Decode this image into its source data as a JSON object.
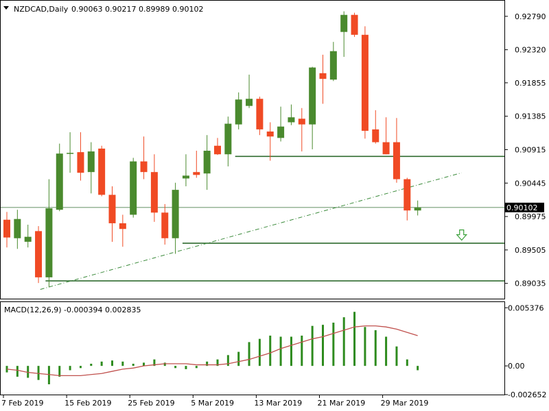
{
  "header": {
    "symbol_timeframe": "NZDCAD,Daily",
    "ohlc": "0.90063 0.90217 0.89989 0.90102"
  },
  "macd_header": "MACD(12,26,9) -0.000394 0.002835",
  "current_price_label": "0.90102",
  "colors": {
    "bull": "#4a8a2e",
    "bear": "#f04a24",
    "level_line": "#2f6b2f",
    "trend_line": "#3a8a3a",
    "macd_hist": "#2e8b1e",
    "signal_line": "#c0504d",
    "arrow": "#3aa03a"
  },
  "chart_data": [
    {
      "type": "candlestick",
      "symbol": "NZDCAD",
      "timeframe": "Daily",
      "ylim": [
        0.8882,
        0.93
      ],
      "y_ticks": [
        "0.92790",
        "0.92320",
        "0.91855",
        "0.91385",
        "0.90915",
        "0.90445",
        "0.89975",
        "0.89505",
        "0.89035"
      ],
      "x_tick_labels": [
        "7 Feb 2019",
        "15 Feb 2019",
        "25 Feb 2019",
        "5 Mar 2019",
        "13 Mar 2019",
        "21 Mar 2019",
        "29 Mar 2019"
      ],
      "candles": [
        {
          "o": 0.8993,
          "h": 0.9004,
          "l": 0.8954,
          "c": 0.8968
        },
        {
          "o": 0.8967,
          "h": 0.9007,
          "l": 0.8952,
          "c": 0.8994
        },
        {
          "o": 0.8962,
          "h": 0.8986,
          "l": 0.8954,
          "c": 0.8969
        },
        {
          "o": 0.8977,
          "h": 0.8984,
          "l": 0.8904,
          "c": 0.8912
        },
        {
          "o": 0.8912,
          "h": 0.905,
          "l": 0.8898,
          "c": 0.9009
        },
        {
          "o": 0.9007,
          "h": 0.91,
          "l": 0.9005,
          "c": 0.9086
        },
        {
          "o": 0.9086,
          "h": 0.9116,
          "l": 0.9059,
          "c": 0.9087
        },
        {
          "o": 0.9088,
          "h": 0.9116,
          "l": 0.9048,
          "c": 0.9059
        },
        {
          "o": 0.906,
          "h": 0.9102,
          "l": 0.903,
          "c": 0.9089
        },
        {
          "o": 0.9093,
          "h": 0.9097,
          "l": 0.9026,
          "c": 0.9028
        },
        {
          "o": 0.9028,
          "h": 0.904,
          "l": 0.8962,
          "c": 0.8988
        },
        {
          "o": 0.8988,
          "h": 0.9,
          "l": 0.8955,
          "c": 0.898
        },
        {
          "o": 0.9,
          "h": 0.908,
          "l": 0.8996,
          "c": 0.9075
        },
        {
          "o": 0.9075,
          "h": 0.911,
          "l": 0.905,
          "c": 0.906
        },
        {
          "o": 0.906,
          "h": 0.9085,
          "l": 0.899,
          "c": 0.9003
        },
        {
          "o": 0.9003,
          "h": 0.9015,
          "l": 0.8958,
          "c": 0.8967
        },
        {
          "o": 0.8967,
          "h": 0.9045,
          "l": 0.8945,
          "c": 0.9035
        },
        {
          "o": 0.9051,
          "h": 0.9085,
          "l": 0.904,
          "c": 0.9055
        },
        {
          "o": 0.906,
          "h": 0.909,
          "l": 0.9052,
          "c": 0.9056
        },
        {
          "o": 0.9058,
          "h": 0.9112,
          "l": 0.9035,
          "c": 0.909
        },
        {
          "o": 0.9097,
          "h": 0.9108,
          "l": 0.9084,
          "c": 0.9085
        },
        {
          "o": 0.9085,
          "h": 0.9138,
          "l": 0.9068,
          "c": 0.9128
        },
        {
          "o": 0.9127,
          "h": 0.9172,
          "l": 0.912,
          "c": 0.9162
        },
        {
          "o": 0.9153,
          "h": 0.9197,
          "l": 0.915,
          "c": 0.9163
        },
        {
          "o": 0.9163,
          "h": 0.9166,
          "l": 0.9112,
          "c": 0.912
        },
        {
          "o": 0.9117,
          "h": 0.913,
          "l": 0.9076,
          "c": 0.911
        },
        {
          "o": 0.9108,
          "h": 0.9152,
          "l": 0.9103,
          "c": 0.9124
        },
        {
          "o": 0.913,
          "h": 0.9155,
          "l": 0.9126,
          "c": 0.9137
        },
        {
          "o": 0.9135,
          "h": 0.915,
          "l": 0.9089,
          "c": 0.9127
        },
        {
          "o": 0.9127,
          "h": 0.9208,
          "l": 0.9092,
          "c": 0.9207
        },
        {
          "o": 0.9199,
          "h": 0.9225,
          "l": 0.9156,
          "c": 0.9191
        },
        {
          "o": 0.919,
          "h": 0.9243,
          "l": 0.9188,
          "c": 0.923
        },
        {
          "o": 0.9257,
          "h": 0.9286,
          "l": 0.9222,
          "c": 0.9281
        },
        {
          "o": 0.9281,
          "h": 0.9284,
          "l": 0.925,
          "c": 0.9253
        },
        {
          "o": 0.9253,
          "h": 0.9265,
          "l": 0.9107,
          "c": 0.9118
        },
        {
          "o": 0.912,
          "h": 0.9147,
          "l": 0.91,
          "c": 0.9102
        },
        {
          "o": 0.9102,
          "h": 0.9137,
          "l": 0.9085,
          "c": 0.9085
        },
        {
          "o": 0.9102,
          "h": 0.9136,
          "l": 0.9045,
          "c": 0.905
        },
        {
          "o": 0.905,
          "h": 0.9052,
          "l": 0.8992,
          "c": 0.9006
        },
        {
          "o": 0.9006,
          "h": 0.902,
          "l": 0.8999,
          "c": 0.901
        }
      ],
      "horizontal_levels": [
        0.9082,
        0.896,
        0.8907
      ],
      "trend_line": [
        {
          "bar": 3.5,
          "price": 0.8895
        },
        {
          "bar": 43.5,
          "price": 0.9059
        }
      ],
      "current_price": 0.90102,
      "down_arrow": {
        "bar": 43.5,
        "price": 0.897
      }
    },
    {
      "type": "macd_histogram",
      "title": "MACD(12,26,9) -0.000394 0.002835",
      "params": [
        12,
        26,
        9
      ],
      "ylim": [
        -0.00265,
        0.0059
      ],
      "y_ticks": [
        "0.005376",
        "0.00",
        "-0.002652"
      ],
      "histogram": [
        -0.0006,
        -0.001,
        -0.0011,
        -0.0013,
        -0.0017,
        -0.001,
        -0.0004,
        -0.0002,
        0.0002,
        0.0004,
        0.0005,
        0.0004,
        0.0002,
        0.0003,
        0.0006,
        0.0003,
        -0.0002,
        -0.0003,
        -0.0002,
        0.0004,
        0.0006,
        0.001,
        0.0013,
        0.0022,
        0.0025,
        0.0028,
        0.0027,
        0.0027,
        0.0028,
        0.0037,
        0.0038,
        0.004,
        0.0045,
        0.005,
        0.0036,
        0.0033,
        0.0027,
        0.0018,
        0.0006,
        -0.0004
      ],
      "signal": [
        -0.0003,
        -0.0004,
        -0.0006,
        -0.0007,
        -0.0008,
        -0.0009,
        -0.0009,
        -0.0009,
        -0.0008,
        -0.0007,
        -0.0005,
        -0.0003,
        -0.0002,
        0.0,
        0.0001,
        0.0002,
        0.0002,
        0.0002,
        0.0001,
        0.0001,
        0.0001,
        0.0002,
        0.0004,
        0.0006,
        0.0009,
        0.0012,
        0.0016,
        0.0019,
        0.0022,
        0.0025,
        0.0027,
        0.003,
        0.0033,
        0.0036,
        0.0037,
        0.0037,
        0.0036,
        0.0034,
        0.0031,
        0.0028
      ]
    }
  ]
}
